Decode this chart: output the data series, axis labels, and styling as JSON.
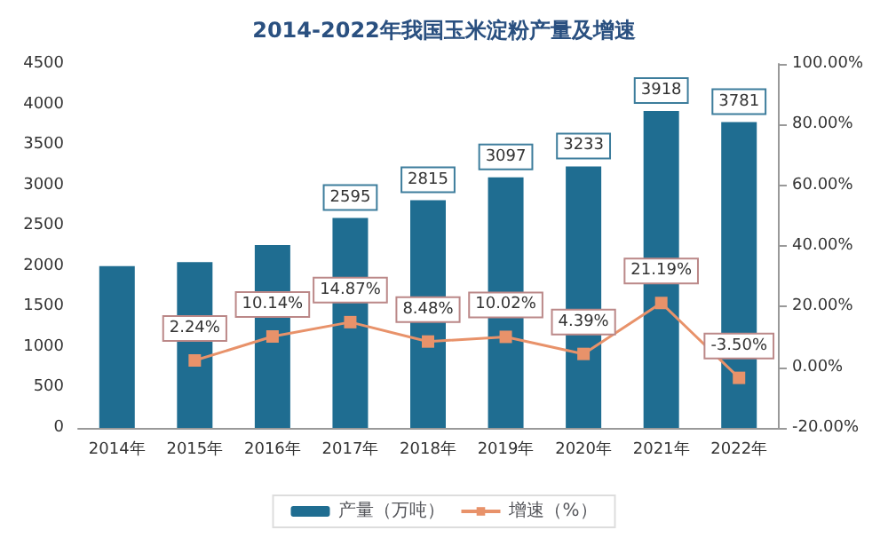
{
  "chart_data": {
    "type": "bar",
    "title": "2014-2022年我国玉米淀粉产量及增速",
    "categories": [
      "2014年",
      "2015年",
      "2016年",
      "2017年",
      "2018年",
      "2019年",
      "2020年",
      "2021年",
      "2022年"
    ],
    "series": [
      {
        "name": "产量（万吨）",
        "color": "#1f6d91",
        "values": [
          2000,
          2050,
          2260,
          2595,
          2815,
          3097,
          3233,
          3918,
          3781
        ],
        "value_labels": [
          null,
          null,
          null,
          "2595",
          "2815",
          "3097",
          "3233",
          "3918",
          "3781"
        ]
      },
      {
        "name": "增速（%）",
        "type": "line",
        "axis": "y2",
        "color": "#e8926a",
        "marker": "square",
        "values": [
          null,
          2.24,
          10.14,
          14.87,
          8.48,
          10.02,
          4.39,
          21.19,
          -3.5
        ],
        "value_labels": [
          null,
          "2.24%",
          "10.14%",
          "14.87%",
          "8.48%",
          "10.02%",
          "4.39%",
          "21.19%",
          "-3.50%"
        ]
      }
    ],
    "ylim": [
      0,
      4500
    ],
    "yticks": [
      0,
      500,
      1000,
      1500,
      2000,
      2500,
      3000,
      3500,
      4000,
      4500
    ],
    "y2lim": [
      -20,
      100
    ],
    "y2ticks": [
      {
        "value": -20,
        "label": "-20.00%"
      },
      {
        "value": 0,
        "label": "0.00%"
      },
      {
        "value": 20,
        "label": "20.00%"
      },
      {
        "value": 40,
        "label": "40.00%"
      },
      {
        "value": 60,
        "label": "60.00%"
      },
      {
        "value": 80,
        "label": "80.00%"
      },
      {
        "value": 100,
        "label": "100.00%"
      }
    ],
    "grid": false,
    "legend": "bottom"
  }
}
